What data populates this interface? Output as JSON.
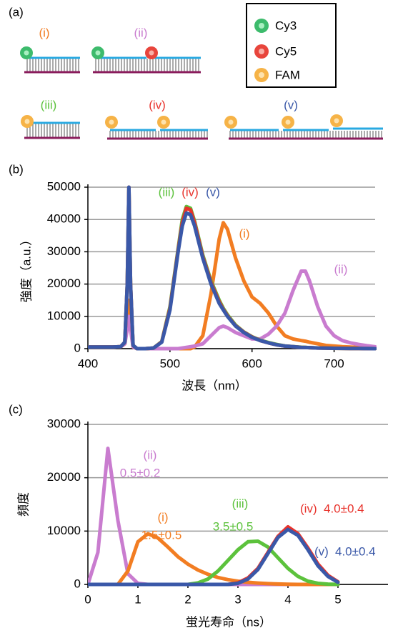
{
  "diagram": {
    "panel_label": "(a)",
    "legend": [
      "Cy3",
      "Cy5",
      "FAM"
    ],
    "constructs": [
      "(i)",
      "(ii)",
      "(iii)",
      "(iv)",
      "(v)"
    ]
  },
  "chart_data": [
    {
      "type": "line",
      "panel_label": "(b)",
      "xlabel": "波長（nm）",
      "ylabel": "強度（a.u.）",
      "xlim": [
        400,
        750
      ],
      "xticks": [
        400,
        500,
        600,
        700
      ],
      "ylim": [
        0,
        50000
      ],
      "yticks": [
        0,
        10000,
        20000,
        30000,
        40000,
        50000
      ],
      "grid": true,
      "x": [
        400,
        410,
        420,
        430,
        440,
        445,
        448,
        450,
        452,
        455,
        460,
        470,
        480,
        490,
        500,
        510,
        515,
        520,
        525,
        530,
        540,
        550,
        560,
        565,
        570,
        580,
        590,
        600,
        610,
        620,
        630,
        640,
        650,
        660,
        665,
        670,
        680,
        690,
        700,
        710,
        720,
        730,
        740,
        750
      ],
      "series": [
        {
          "name": "(i)",
          "color": "#f27d22",
          "values": [
            500,
            500,
            500,
            500,
            600,
            1500,
            8000,
            15000,
            8000,
            500,
            0,
            0,
            0,
            0,
            0,
            0,
            0,
            0,
            0,
            500,
            4000,
            17000,
            34000,
            39000,
            37000,
            28000,
            21000,
            16000,
            14000,
            11000,
            7000,
            4000,
            3000,
            2500,
            2300,
            2000,
            1500,
            1000,
            800,
            600,
            500,
            400,
            300,
            200
          ]
        },
        {
          "name": "(ii)",
          "color": "#c97ccf",
          "values": [
            500,
            500,
            500,
            500,
            600,
            1500,
            6000,
            10000,
            6000,
            500,
            0,
            0,
            0,
            0,
            0,
            0,
            200,
            400,
            600,
            800,
            1500,
            4000,
            6500,
            7000,
            6500,
            5000,
            4000,
            3000,
            3000,
            4500,
            7000,
            11000,
            18000,
            24000,
            24000,
            21000,
            13000,
            7000,
            4000,
            2500,
            1800,
            1300,
            900,
            600
          ]
        },
        {
          "name": "(iii)",
          "color": "#5cc23c",
          "values": [
            500,
            500,
            500,
            500,
            600,
            2000,
            20000,
            50000,
            20000,
            1000,
            0,
            0,
            200,
            2200,
            13000,
            31000,
            40000,
            44000,
            43500,
            39500,
            29000,
            21000,
            15000,
            12500,
            10500,
            7300,
            5200,
            3700,
            2600,
            1900,
            1300,
            850,
            650,
            450,
            380,
            320,
            220,
            160,
            110,
            90,
            70,
            50,
            25,
            0
          ]
        },
        {
          "name": "(iv)",
          "color": "#e8322b",
          "values": [
            500,
            500,
            500,
            500,
            600,
            2000,
            20000,
            50000,
            20000,
            1000,
            0,
            0,
            200,
            2100,
            12500,
            30500,
            39000,
            43500,
            43000,
            39000,
            28500,
            20500,
            14500,
            12200,
            10200,
            7100,
            5100,
            3600,
            2500,
            1800,
            1200,
            800,
            600,
            400,
            350,
            300,
            200,
            150,
            100,
            80,
            60,
            40,
            20,
            0
          ]
        },
        {
          "name": "(v)",
          "color": "#3a58a8",
          "values": [
            500,
            500,
            500,
            500,
            600,
            2000,
            20000,
            50000,
            20000,
            1000,
            0,
            0,
            200,
            2000,
            12000,
            30000,
            38000,
            42000,
            41500,
            38000,
            28000,
            20000,
            14000,
            12000,
            10000,
            7000,
            5000,
            3500,
            2500,
            1800,
            1200,
            800,
            600,
            400,
            350,
            300,
            200,
            150,
            100,
            80,
            60,
            40,
            20,
            0
          ]
        }
      ]
    },
    {
      "type": "line",
      "panel_label": "(c)",
      "xlabel": "蛍光寿命（ns）",
      "ylabel": "頻度",
      "xlim": [
        0,
        6
      ],
      "xticks": [
        0,
        1,
        2,
        3,
        4,
        5
      ],
      "ylim": [
        0,
        30000
      ],
      "yticks": [
        0,
        10000,
        20000,
        30000
      ],
      "grid": true,
      "x": [
        0,
        0.2,
        0.4,
        0.6,
        0.8,
        1,
        1.2,
        1.4,
        1.6,
        1.8,
        2,
        2.2,
        2.4,
        2.6,
        2.8,
        3,
        3.2,
        3.4,
        3.6,
        3.8,
        4,
        4.2,
        4.4,
        4.6,
        4.8,
        5
      ],
      "series": [
        {
          "name": "(ii)",
          "annotation": "0.5±0.2",
          "color": "#c97ccf",
          "values": [
            0,
            6000,
            25500,
            12000,
            2000,
            200,
            0,
            0,
            0,
            0,
            0,
            0,
            0,
            0,
            0,
            0,
            0,
            0,
            0,
            0,
            0,
            0,
            0,
            0,
            0,
            0
          ]
        },
        {
          "name": "(i)",
          "annotation": "1.5±0.5",
          "color": "#f27d22",
          "values": [
            0,
            0,
            0,
            0,
            2500,
            8000,
            9500,
            8700,
            7000,
            5200,
            3800,
            2700,
            1900,
            1300,
            900,
            600,
            400,
            250,
            150,
            80,
            40,
            0,
            0,
            0,
            0,
            0
          ]
        },
        {
          "name": "(iii)",
          "annotation": "3.5±0.5",
          "color": "#5cc23c",
          "values": [
            0,
            0,
            0,
            0,
            0,
            0,
            0,
            0,
            0,
            0,
            0,
            300,
            1000,
            2500,
            4500,
            6500,
            8000,
            8100,
            7000,
            5000,
            3000,
            1500,
            600,
            200,
            50,
            0
          ]
        },
        {
          "name": "(iv)",
          "annotation": "4.0±0.4",
          "color": "#e8322b",
          "values": [
            0,
            0,
            0,
            0,
            0,
            0,
            0,
            0,
            0,
            0,
            0,
            0,
            0,
            0,
            0,
            300,
            1200,
            3000,
            6000,
            9000,
            10800,
            9500,
            6800,
            3800,
            1700,
            500
          ]
        },
        {
          "name": "(v)",
          "annotation": "4.0±0.4",
          "color": "#3a58a8",
          "values": [
            0,
            0,
            0,
            0,
            0,
            0,
            0,
            0,
            0,
            0,
            0,
            0,
            0,
            0,
            0,
            200,
            1000,
            2800,
            5800,
            8800,
            10300,
            9200,
            6500,
            3500,
            1500,
            400
          ]
        }
      ]
    }
  ]
}
